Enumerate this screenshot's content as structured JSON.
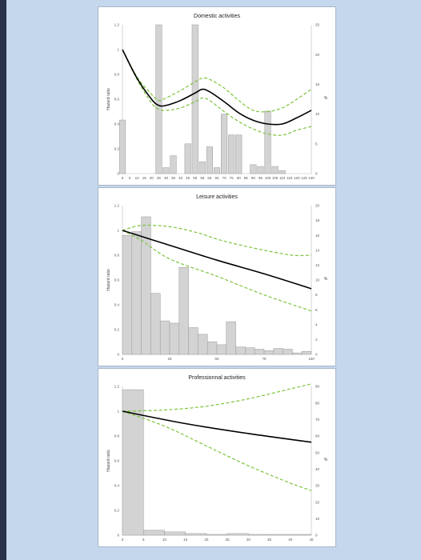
{
  "chart_data": [
    {
      "type": "bar",
      "title": "Domestic activities",
      "ylabel": "Hazard ratio",
      "y2label": "%",
      "x_ticks": [
        "0",
        "5",
        "10",
        "15",
        "20",
        "25",
        "30",
        "35",
        "40",
        "45",
        "50",
        "55",
        "60",
        "65",
        "70",
        "75",
        "80",
        "85",
        "90",
        "95",
        "100",
        "105",
        "110",
        "115",
        "120",
        "125",
        "130"
      ],
      "y_ticks": [
        "0",
        "0.2",
        "0.4",
        "0.6",
        "0.8",
        "1",
        "1.2"
      ],
      "y2_ticks": [
        "0",
        "5",
        "10",
        "15",
        "20",
        "25"
      ],
      "ylim": [
        0,
        1.2
      ],
      "y2lim": [
        0,
        25
      ],
      "xlim": [
        0,
        130
      ],
      "bars": {
        "name": "%",
        "x": [
          0,
          25,
          30,
          35,
          45,
          50,
          55,
          60,
          65,
          70,
          75,
          80,
          90,
          95,
          100,
          105,
          110
        ],
        "values": [
          9,
          25,
          1,
          3,
          5,
          25,
          2,
          4.5,
          1,
          10,
          6.5,
          6.5,
          1.5,
          1.2,
          10.5,
          1.2,
          0.5
        ]
      },
      "hazard_curve": {
        "x": [
          0,
          10,
          20,
          25,
          30,
          40,
          50,
          55,
          60,
          70,
          80,
          90,
          100,
          110,
          120,
          130
        ],
        "values": [
          1.0,
          0.77,
          0.6,
          0.55,
          0.55,
          0.59,
          0.65,
          0.68,
          0.66,
          0.58,
          0.49,
          0.43,
          0.4,
          0.4,
          0.45,
          0.51
        ]
      },
      "ci_upper": {
        "x": [
          0,
          10,
          20,
          25,
          30,
          40,
          50,
          55,
          60,
          70,
          80,
          90,
          100,
          110,
          120,
          130
        ],
        "values": [
          1.0,
          0.78,
          0.64,
          0.59,
          0.61,
          0.67,
          0.74,
          0.77,
          0.76,
          0.69,
          0.59,
          0.51,
          0.5,
          0.53,
          0.6,
          0.68
        ]
      },
      "ci_lower": {
        "x": [
          0,
          10,
          20,
          25,
          30,
          40,
          50,
          55,
          60,
          70,
          80,
          90,
          100,
          110,
          120,
          130
        ],
        "values": [
          1.0,
          0.76,
          0.57,
          0.52,
          0.51,
          0.53,
          0.58,
          0.61,
          0.59,
          0.5,
          0.42,
          0.36,
          0.32,
          0.31,
          0.35,
          0.38
        ]
      }
    },
    {
      "type": "bar",
      "title": "Leisure activities",
      "ylabel": "Hazard ratio",
      "y2label": "%",
      "x_ticks": [
        "0",
        "25",
        "50",
        "75",
        "100"
      ],
      "y_ticks": [
        "0",
        "0.2",
        "0.4",
        "0.6",
        "0.8",
        "1",
        "1.2"
      ],
      "y2_ticks": [
        "0",
        "2",
        "4",
        "6",
        "8",
        "10",
        "12",
        "14",
        "16",
        "18",
        "20"
      ],
      "ylim": [
        0,
        1.2
      ],
      "y2lim": [
        0,
        20
      ],
      "xlim": [
        0,
        100
      ],
      "bars": {
        "name": "%",
        "bin_width": 5,
        "x": [
          0,
          5,
          10,
          15,
          20,
          25,
          30,
          35,
          40,
          45,
          50,
          55,
          60,
          65,
          70,
          75,
          80,
          85,
          90,
          95
        ],
        "values": [
          16,
          16.5,
          18.5,
          8.2,
          4.5,
          4.2,
          11.7,
          3.6,
          2.7,
          1.7,
          1.3,
          4.4,
          1.0,
          0.9,
          0.7,
          0.5,
          0.8,
          0.7,
          0.2,
          0.4
        ]
      },
      "hazard_curve": {
        "x": [
          0,
          25,
          50,
          75,
          100
        ],
        "values": [
          1.0,
          0.88,
          0.76,
          0.65,
          0.53
        ]
      },
      "ci_upper": {
        "x": [
          0,
          10,
          25,
          40,
          50,
          60,
          75,
          90,
          100
        ],
        "values": [
          1.0,
          1.04,
          1.03,
          0.98,
          0.93,
          0.89,
          0.84,
          0.8,
          0.8
        ]
      },
      "ci_lower": {
        "x": [
          0,
          10,
          25,
          50,
          75,
          100
        ],
        "values": [
          1.0,
          0.92,
          0.77,
          0.63,
          0.48,
          0.35
        ]
      }
    },
    {
      "type": "bar",
      "title": "Professionnal activities",
      "ylabel": "Hazard ratio",
      "y2label": "%",
      "x_ticks": [
        "0",
        "5",
        "10",
        "15",
        "20",
        "25",
        "30",
        "35",
        "40",
        "45"
      ],
      "y_ticks": [
        "0",
        "0.2",
        "0.4",
        "0.6",
        "0.8",
        "1",
        "1.2"
      ],
      "y2_ticks": [
        "0",
        "10",
        "20",
        "30",
        "40",
        "50",
        "60",
        "70",
        "80",
        "90"
      ],
      "ylim": [
        0,
        1.2
      ],
      "y2lim": [
        0,
        90
      ],
      "xlim": [
        0,
        45
      ],
      "bars": {
        "name": "%",
        "bin_width": 5,
        "x": [
          0,
          5,
          10,
          15,
          20,
          25,
          30,
          35,
          40
        ],
        "values": [
          88,
          3,
          2,
          1,
          0.5,
          1,
          0.5,
          0.5,
          0.5
        ]
      },
      "hazard_curve": {
        "x": [
          0,
          15,
          30,
          45
        ],
        "values": [
          1.0,
          0.9,
          0.82,
          0.75
        ]
      },
      "ci_upper": {
        "x": [
          0,
          10,
          20,
          30,
          40,
          45
        ],
        "values": [
          1.0,
          1.01,
          1.04,
          1.1,
          1.18,
          1.22
        ]
      },
      "ci_lower": {
        "x": [
          0,
          10,
          20,
          30,
          40,
          45
        ],
        "values": [
          1.0,
          0.88,
          0.72,
          0.56,
          0.42,
          0.36
        ]
      }
    }
  ]
}
